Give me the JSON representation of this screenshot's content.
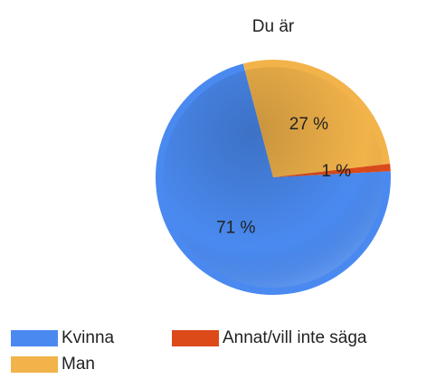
{
  "chart_data": {
    "type": "pie",
    "title": "Du är",
    "categories": [
      "Kvinna",
      "Man",
      "Annat/vill inte säga"
    ],
    "values": [
      71,
      27,
      1
    ],
    "value_labels": [
      "71 %",
      "27 %",
      "1 %"
    ],
    "colors": [
      "#4a8af0",
      "#f2b34a",
      "#dc4a1a"
    ],
    "legend": "bottom"
  }
}
